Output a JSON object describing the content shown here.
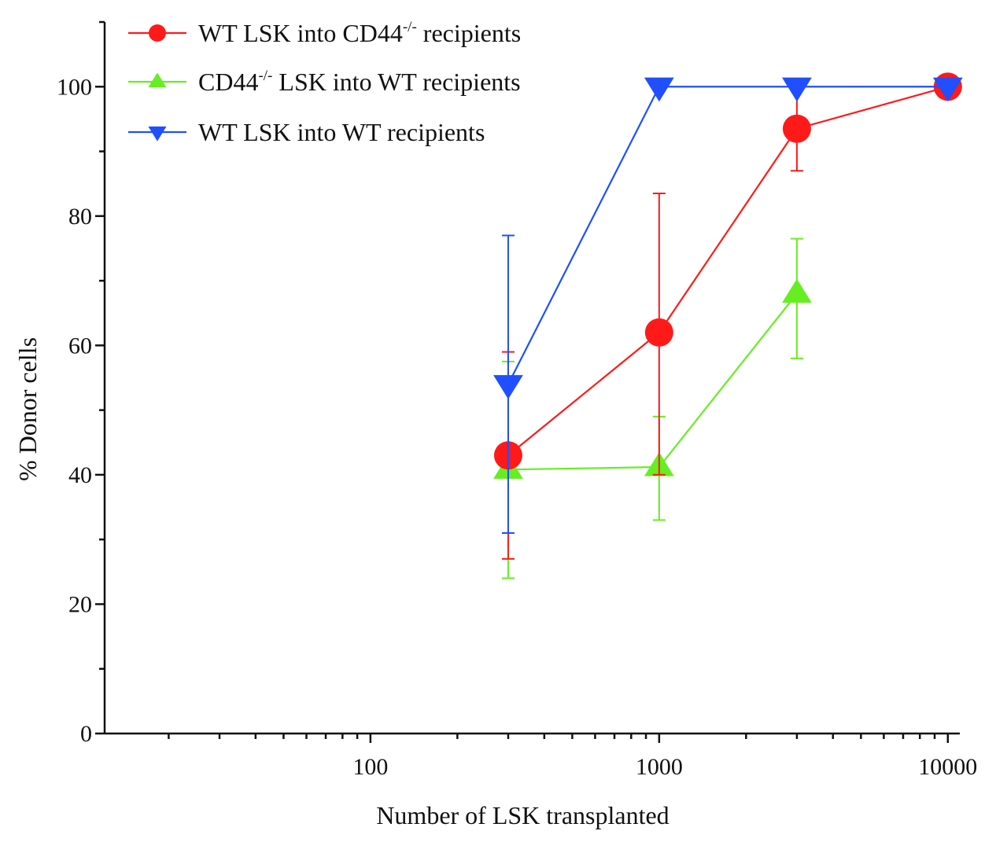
{
  "chart_data": {
    "type": "line",
    "title": "",
    "xlabel": "Number of LSK transplanted",
    "ylabel": "% Donor cells",
    "xscale": "log",
    "xlim": [
      12,
      11000
    ],
    "ylim": [
      0,
      110
    ],
    "xticks": [
      100,
      1000,
      10000
    ],
    "xtick_labels": [
      "100",
      "1000",
      "10000"
    ],
    "yticks": [
      0,
      20,
      40,
      60,
      80,
      100
    ],
    "ytick_labels": [
      "0",
      "20",
      "40",
      "60",
      "80",
      "100"
    ],
    "grid": false,
    "legend_position": "top-left",
    "series": [
      {
        "name": "WT LSK into CD44-/- recipients",
        "legend_main": "WT LSK into CD44",
        "legend_sup": "-/-",
        "legend_rest": " recipients",
        "color": "#ff1a1a",
        "marker": "circle",
        "x": [
          300,
          1000,
          3000,
          10000
        ],
        "y": [
          43,
          62,
          93.5,
          100
        ],
        "err_low": [
          27,
          40,
          87,
          100
        ],
        "err_high": [
          59,
          83.5,
          100,
          100
        ]
      },
      {
        "name": "CD44-/- LSK into WT recipients",
        "legend_main": "CD44",
        "legend_sup": "-/-",
        "legend_rest": " LSK into WT recipients",
        "color": "#66ee22",
        "marker": "triangle-up",
        "x": [
          300,
          1000,
          3000
        ],
        "y": [
          40.8,
          41.2,
          68
        ],
        "err_low": [
          24,
          33,
          58
        ],
        "err_high": [
          57.5,
          49,
          76.5
        ]
      },
      {
        "name": "WT LSK into WT recipients",
        "legend_main": "WT LSK into WT recipients",
        "legend_sup": "",
        "legend_rest": "",
        "color": "#1f4fff",
        "marker": "triangle-down",
        "x": [
          300,
          1000,
          3000,
          10000
        ],
        "y": [
          54,
          100,
          100,
          100
        ],
        "err_low": [
          31,
          100,
          100,
          100
        ],
        "err_high": [
          77,
          100,
          100,
          100
        ]
      }
    ]
  }
}
